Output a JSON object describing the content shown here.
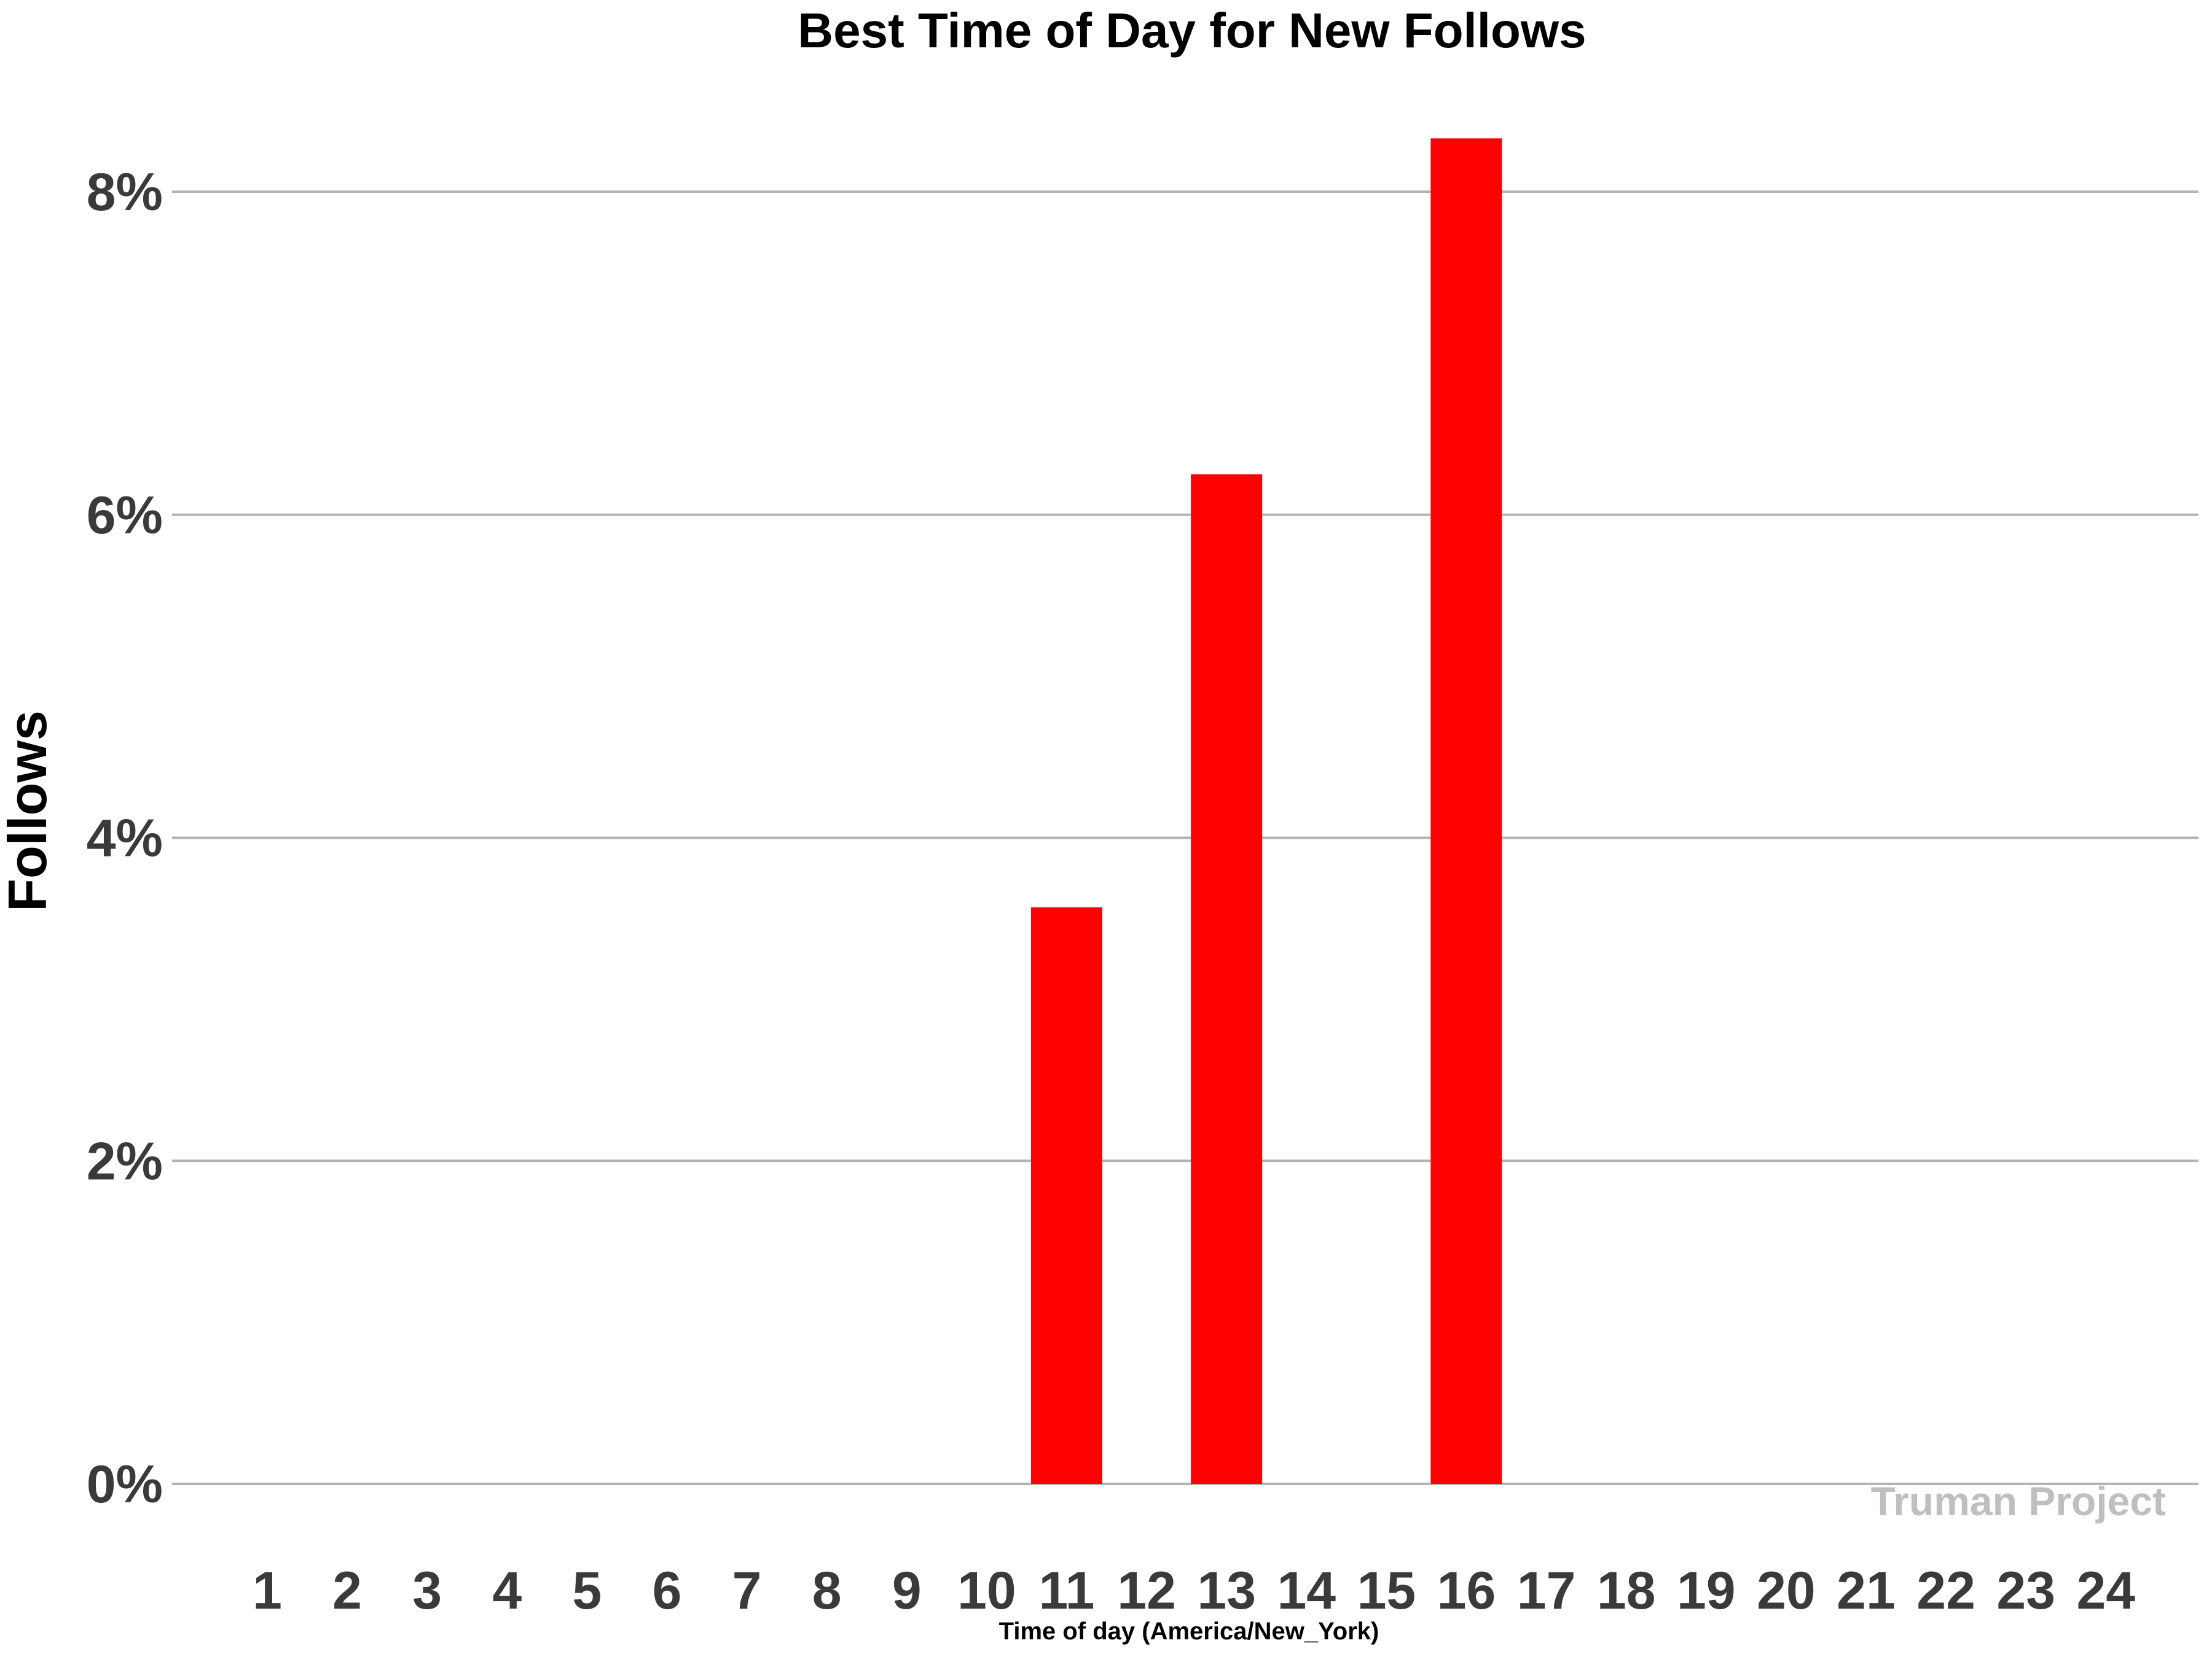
{
  "chart_data": {
    "type": "bar",
    "title": "Best Time of Day for New Follows",
    "xlabel": "Time of day (America/New_York)",
    "ylabel": "Follows",
    "categories": [
      "1",
      "2",
      "3",
      "4",
      "5",
      "6",
      "7",
      "8",
      "9",
      "10",
      "11",
      "12",
      "13",
      "14",
      "15",
      "16",
      "17",
      "18",
      "19",
      "20",
      "21",
      "22",
      "23",
      "24"
    ],
    "values": [
      0,
      0,
      0,
      0,
      0,
      0,
      0,
      0,
      0,
      0,
      3.57,
      0,
      6.25,
      0,
      0,
      8.33,
      0,
      0,
      0,
      0,
      0,
      0,
      0,
      0
    ],
    "ylim": [
      0,
      8.6
    ],
    "yticks": [
      0,
      2,
      4,
      6,
      8
    ],
    "ytick_labels": [
      "0%",
      "2%",
      "4%",
      "6%",
      "8%"
    ],
    "grid": true,
    "bar_color": "#ff0000",
    "grid_color": "#b3b3b3"
  },
  "watermark": "Truman Project"
}
